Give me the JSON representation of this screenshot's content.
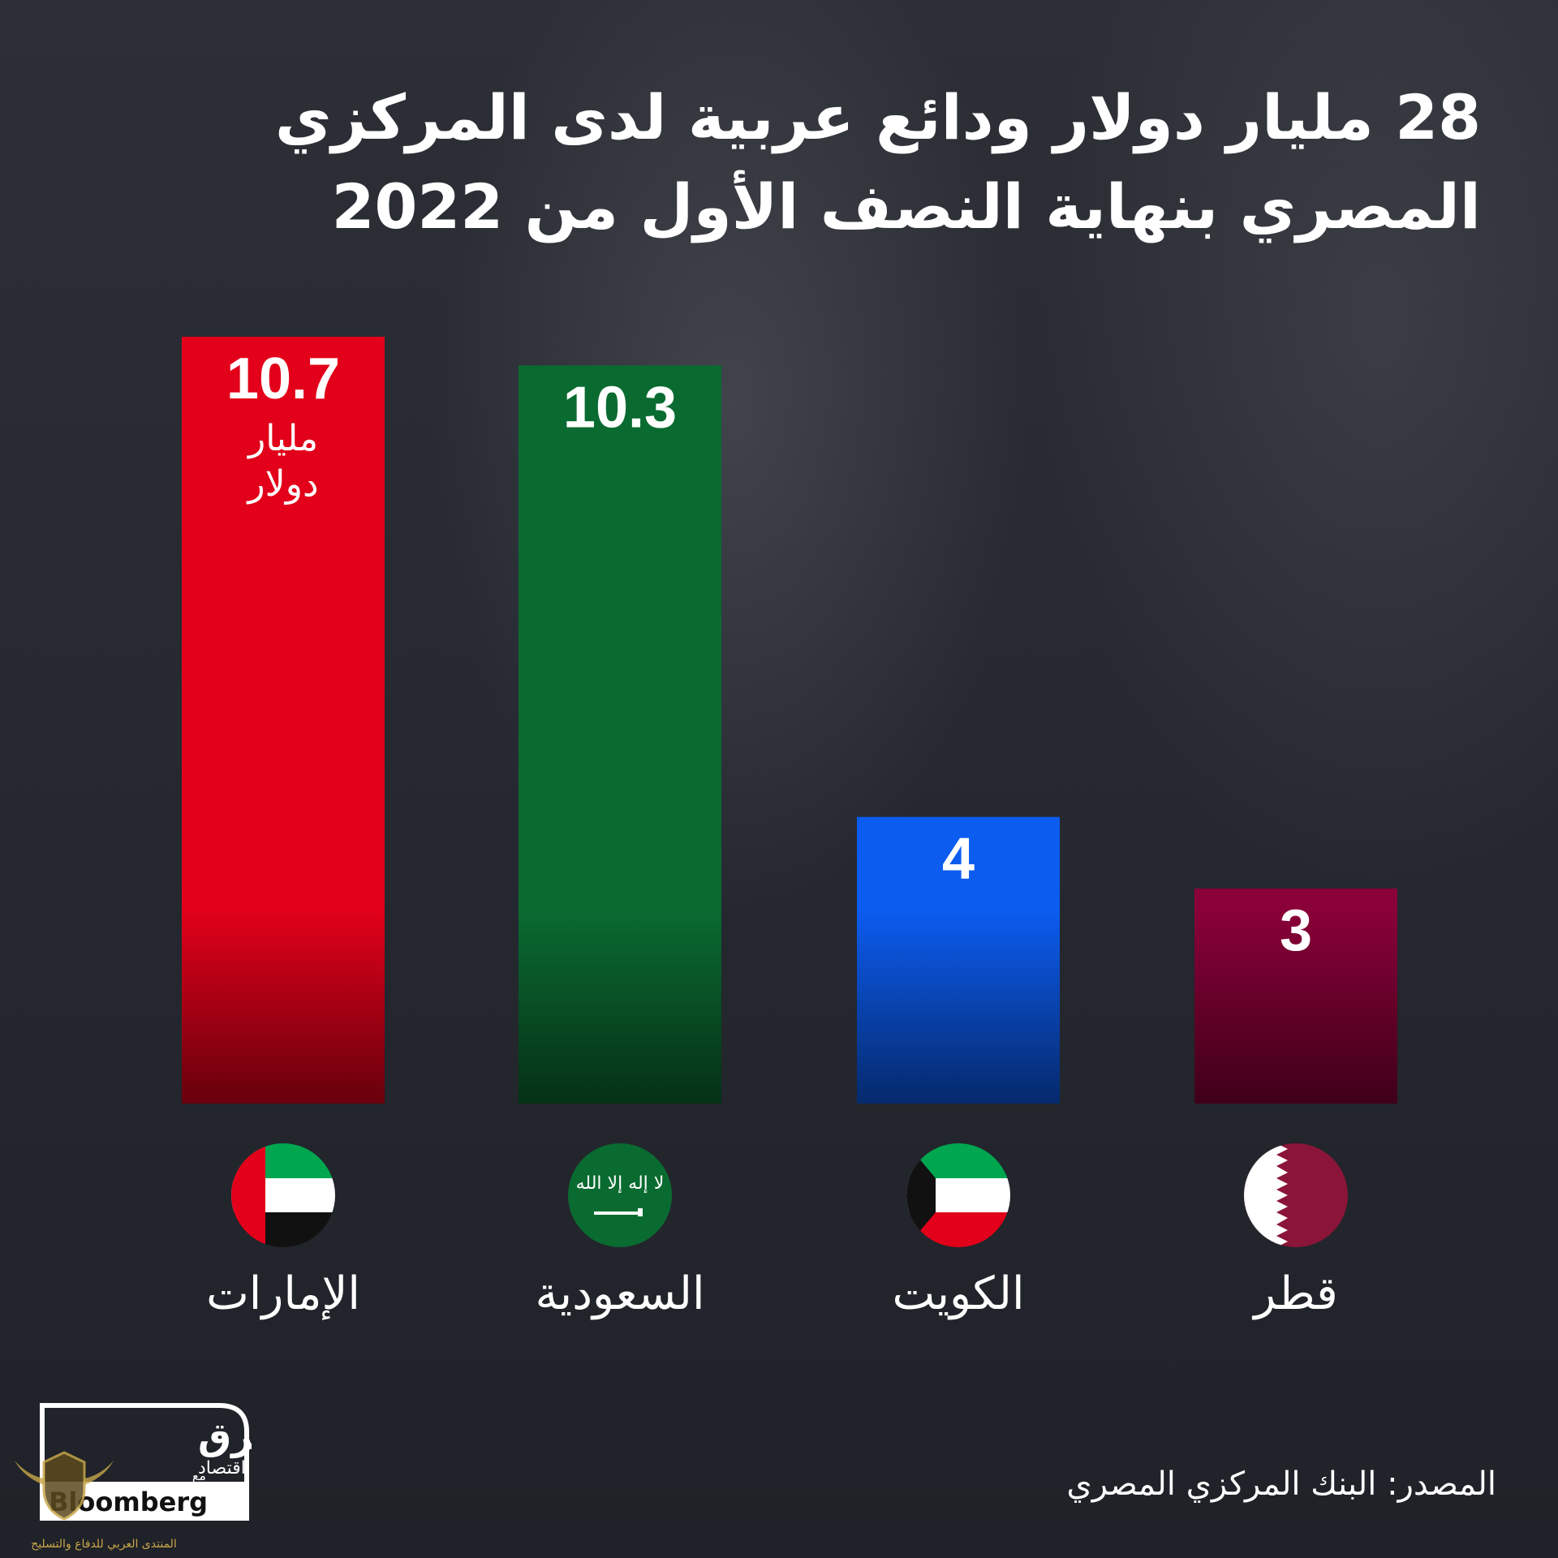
{
  "title": {
    "line1": "28 مليار دولار ودائع عربية لدى المركزي",
    "line2": "المصري بنهاية النصف الأول من 2022"
  },
  "source": "المصدر: البنك المركزي المصري",
  "logo": {
    "brand": "الشرق",
    "sub": "اقتصاد",
    "with": "مع",
    "partner": "Bloomberg"
  },
  "watermark": {
    "text": "المنتدى العربي للدفاع والتسليح"
  },
  "chart_data": {
    "type": "bar",
    "categories": [
      "الإمارات",
      "السعودية",
      "الكويت",
      "قطر"
    ],
    "values": [
      10.7,
      10.3,
      4,
      3
    ],
    "value_labels": [
      "10.7",
      "10.3",
      "4",
      "3"
    ],
    "unit_label": [
      "مليار",
      "دولار"
    ],
    "colors": [
      "#e2001a",
      "#0a6b31",
      "#0c5cf0",
      "#8a0038"
    ],
    "flags": [
      "uae-flag-icon",
      "saudi-flag-icon",
      "kuwait-flag-icon",
      "qatar-flag-icon"
    ],
    "ylim": [
      0,
      10.7
    ],
    "grid": false,
    "legend": "none"
  }
}
